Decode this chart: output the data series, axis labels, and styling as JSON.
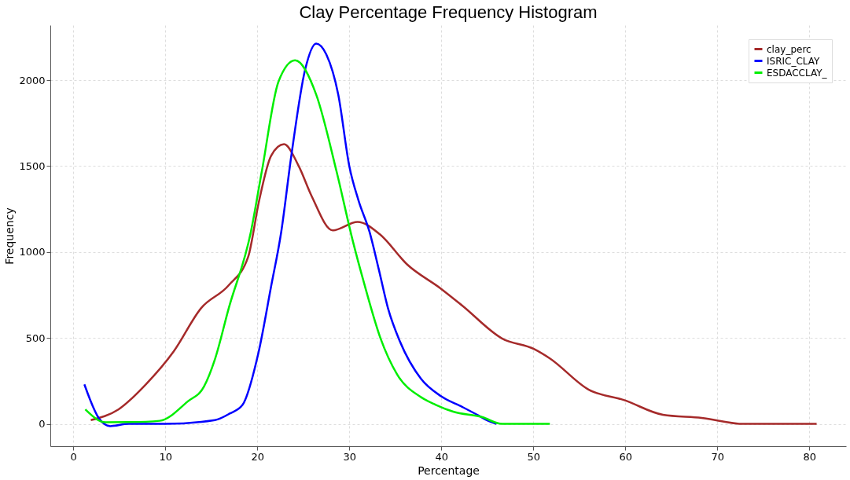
{
  "chart_data": {
    "type": "line",
    "title": "Clay Percentage Frequency Histogram",
    "xlabel": "Percentage",
    "ylabel": "Frequency",
    "xlim": [
      -2.5,
      84
    ],
    "xticks": [
      0,
      10,
      20,
      30,
      40,
      50,
      60,
      70,
      80
    ],
    "ylim": [
      -130,
      2320
    ],
    "yticks": [
      0,
      500,
      1000,
      1500,
      2000
    ],
    "grid": true,
    "legend": "top right",
    "line_style": "solid",
    "marker": "none",
    "series": [
      {
        "name": "clay_perc",
        "color": "#a52a2a",
        "x": [
          1.9,
          4.9,
          7.9,
          10.9,
          13.9,
          16.9,
          19,
          20.2,
          21.5,
          22.9,
          24.5,
          25.9,
          28.2,
          30.9,
          33.3,
          36.3,
          39.9,
          42.3,
          46.6,
          50.1,
          51.8,
          56,
          59.9,
          64.1,
          68.3,
          72.9,
          80.8
        ],
        "values": [
          22,
          84,
          231,
          421,
          674,
          807,
          971,
          1300,
          1560,
          1627,
          1500,
          1326,
          1126,
          1175,
          1104,
          927,
          789,
          687,
          497,
          435,
          381,
          200,
          138,
          53,
          35,
          0,
          0
        ]
      },
      {
        "name": "ISRIC_CLAY",
        "color": "#0000ff",
        "x": [
          1.2,
          2.8,
          4,
          6,
          10,
          15.4,
          17,
          18.4,
          20.1,
          21.5,
          22.6,
          23.7,
          25.2,
          26.4,
          27.5,
          28.8,
          30,
          31,
          32.2,
          33.2,
          34.2,
          35.5,
          37.8,
          40,
          42.3,
          44,
          45,
          46
        ],
        "values": [
          230,
          31,
          -13,
          0,
          0,
          22,
          60,
          111,
          408,
          800,
          1117,
          1561,
          2062,
          2213,
          2150,
          1916,
          1500,
          1300,
          1117,
          900,
          674,
          480,
          262,
          160,
          98,
          50,
          20,
          0
        ]
      },
      {
        "name": "ESDACCLAY_",
        "color": "#00ee00",
        "x": [
          1.3,
          3.5,
          6,
          9.4,
          12.4,
          14.2,
          15.4,
          16.9,
          19.3,
          20.5,
          22.3,
          24.1,
          26.4,
          28.6,
          30.4,
          31.6,
          33.4,
          35.2,
          37.8,
          39.4,
          41.3,
          44.4,
          46.6,
          51.8
        ],
        "values": [
          84,
          9,
          10,
          18,
          129,
          217,
          377,
          674,
          1117,
          1472,
          1991,
          2115,
          1916,
          1472,
          1060,
          820,
          497,
          288,
          155,
          111,
          71,
          40,
          0,
          0
        ]
      }
    ]
  }
}
